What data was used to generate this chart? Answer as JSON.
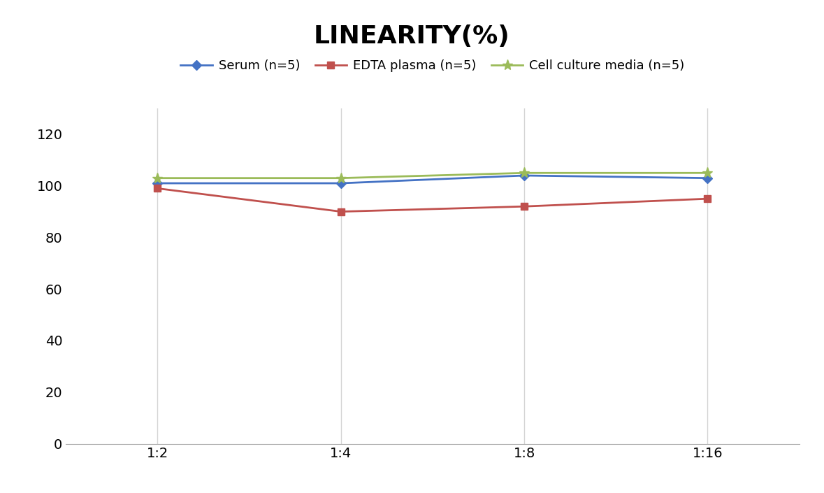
{
  "title": "LINEARITY(%)",
  "title_fontsize": 26,
  "title_fontweight": "bold",
  "x_labels": [
    "1:2",
    "1:4",
    "1:8",
    "1:16"
  ],
  "x_positions": [
    0,
    1,
    2,
    3
  ],
  "series": [
    {
      "label": "Serum (n=5)",
      "values": [
        101,
        101,
        104,
        103
      ],
      "color": "#4472C4",
      "marker": "D",
      "markersize": 7,
      "linewidth": 2
    },
    {
      "label": "EDTA plasma (n=5)",
      "values": [
        99,
        90,
        92,
        95
      ],
      "color": "#C0504D",
      "marker": "s",
      "markersize": 7,
      "linewidth": 2
    },
    {
      "label": "Cell culture media (n=5)",
      "values": [
        103,
        103,
        105,
        105
      ],
      "color": "#9BBB59",
      "marker": "*",
      "markersize": 11,
      "linewidth": 2
    }
  ],
  "ylim": [
    0,
    130
  ],
  "yticks": [
    0,
    20,
    40,
    60,
    80,
    100,
    120
  ],
  "background_color": "#ffffff",
  "grid_color": "#d4d4d4",
  "legend_fontsize": 13,
  "tick_fontsize": 14
}
